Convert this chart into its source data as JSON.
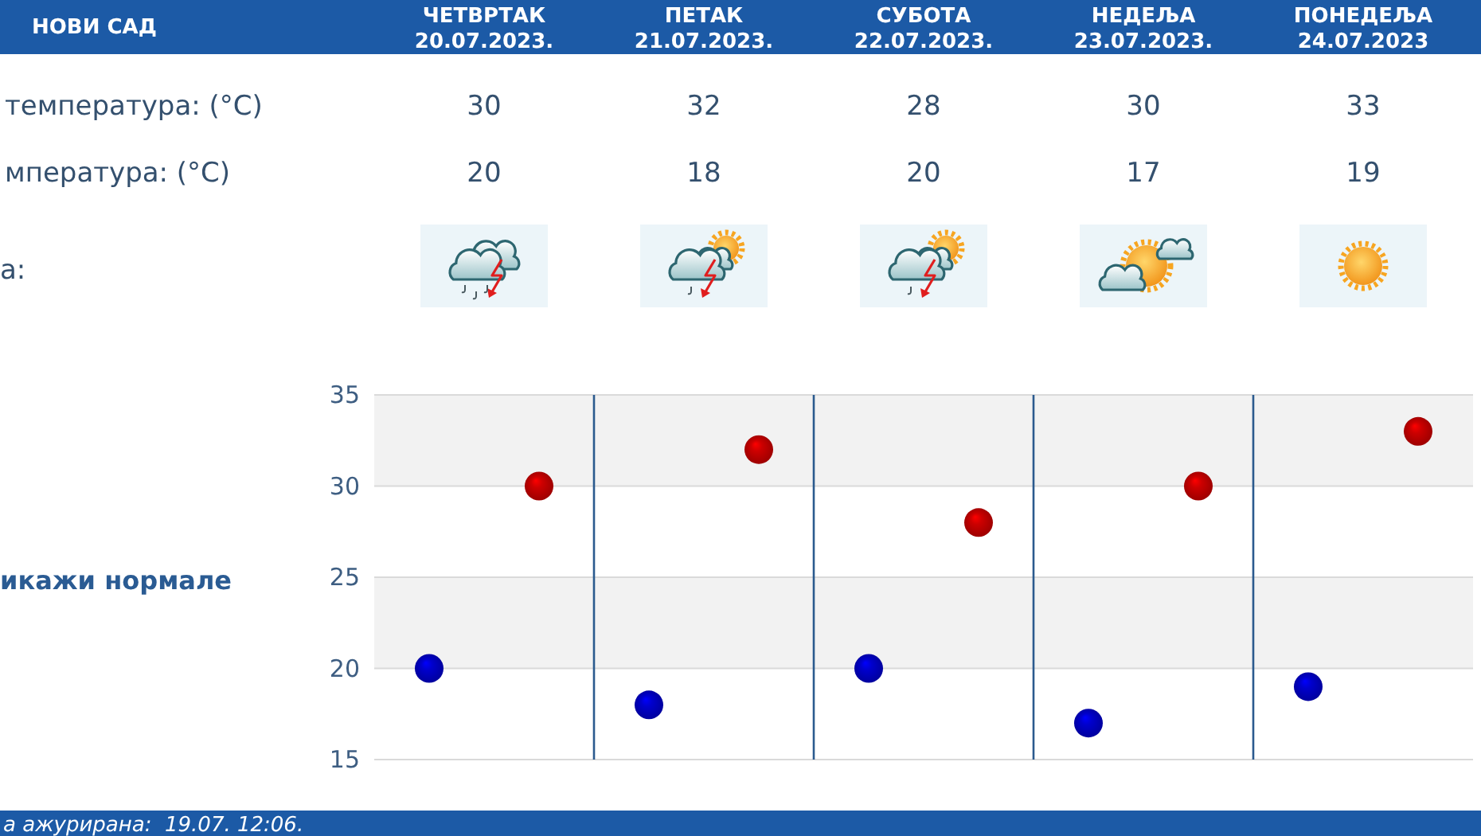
{
  "chart_data": {
    "type": "scatter",
    "title": "НОВИ САД",
    "categories": [
      null,
      null,
      null,
      null,
      null
    ],
    "series": [
      {
        "color": "#cc0000",
        "values": [
          30,
          32,
          28,
          30,
          33
        ]
      },
      {
        "color": "#0000cc",
        "values": [
          20,
          18,
          20,
          17,
          19
        ]
      }
    ],
    "ylim": [
      15,
      35
    ],
    "yticks": [
      15,
      20,
      25,
      30,
      35
    ],
    "grid": true,
    "marker": "circle",
    "data_labels": true,
    "bands": [
      {
        "axis": "y",
        "from": 30,
        "to": 35,
        "color": "#f2f2f2"
      },
      {
        "axis": "y",
        "from": 20,
        "to": 25,
        "color": "#f2f2f2"
      }
    ],
    "annotations": [
      "ЧЕТВРТАК\n20.07.2023.",
      "ПЕТАК\n21.07.2023.",
      "СУБОТА\n22.07.2023.",
      "НЕДЕЉА\n23.07.2023.",
      "ПОНЕДЕЉА\n24.07.2023",
      "температура: (°C)",
      "мпература: (°C)",
      "а:",
      "икажи нормале",
      "а ажурирана:  19.07. 12:06."
    ]
  }
}
